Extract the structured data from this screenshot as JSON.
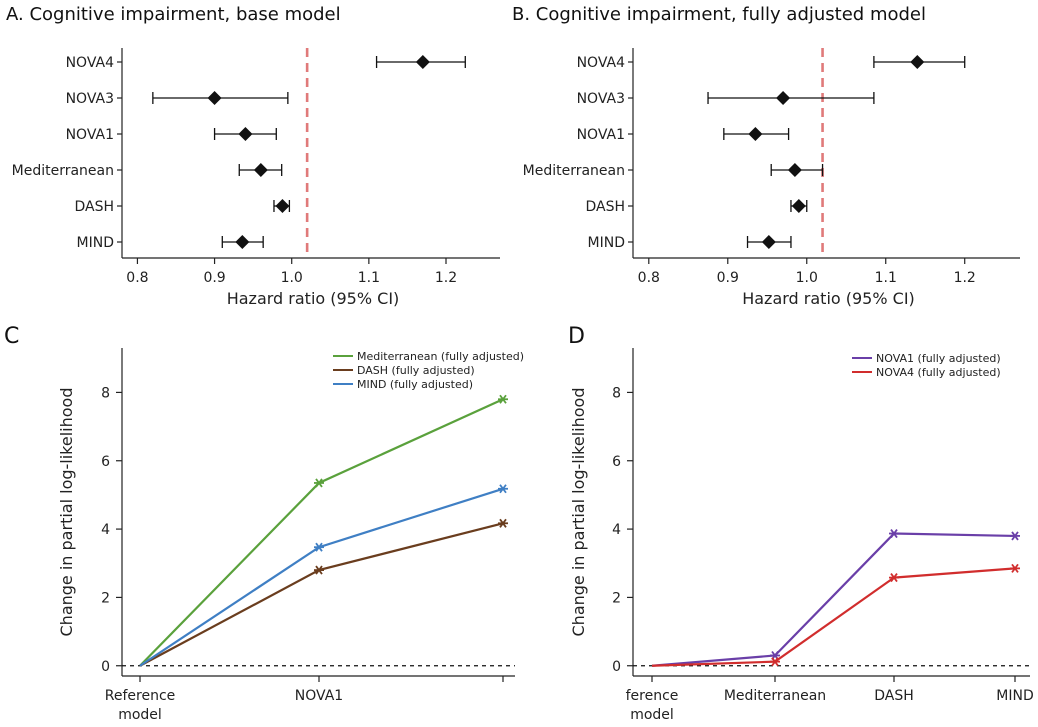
{
  "panels": [
    {
      "type": "forest",
      "title": "A. Cognitive impairment, base model",
      "xlabel": "Hazard ratio (95% CI)",
      "xticks": [
        0.8,
        0.9,
        1.0,
        1.1,
        1.2
      ],
      "xtick_labels": [
        "0.8",
        "0.9",
        "1.0",
        "1.1",
        "1.2"
      ],
      "xlim": [
        0.78,
        1.27
      ],
      "reference_value": 1.02,
      "reference_color": "#e07a7a",
      "rows": [
        {
          "label": "NOVA4",
          "hr": 1.17,
          "lo": 1.11,
          "hi": 1.225
        },
        {
          "label": "NOVA3",
          "hr": 0.9,
          "lo": 0.82,
          "hi": 0.995
        },
        {
          "label": "NOVA1",
          "hr": 0.94,
          "lo": 0.9,
          "hi": 0.98
        },
        {
          "label": "Mediterranean",
          "hr": 0.96,
          "lo": 0.932,
          "hi": 0.987
        },
        {
          "label": "DASH",
          "hr": 0.988,
          "lo": 0.977,
          "hi": 0.997
        },
        {
          "label": "MIND",
          "hr": 0.936,
          "lo": 0.91,
          "hi": 0.963
        }
      ]
    },
    {
      "type": "forest",
      "title": "B. Cognitive impairment, fully adjusted model",
      "xlabel": "Hazard ratio (95% CI)",
      "xticks": [
        0.8,
        0.9,
        1.0,
        1.1,
        1.2
      ],
      "xtick_labels": [
        "0.8",
        "0.9",
        "1.0",
        "1.1",
        "1.2"
      ],
      "xlim": [
        0.78,
        1.27
      ],
      "reference_value": 1.02,
      "reference_color": "#e07a7a",
      "rows": [
        {
          "label": "NOVA4",
          "hr": 1.14,
          "lo": 1.085,
          "hi": 1.2
        },
        {
          "label": "NOVA3",
          "hr": 0.97,
          "lo": 0.875,
          "hi": 1.085
        },
        {
          "label": "NOVA1",
          "hr": 0.935,
          "lo": 0.895,
          "hi": 0.977
        },
        {
          "label": "Mediterranean",
          "hr": 0.985,
          "lo": 0.955,
          "hi": 1.02
        },
        {
          "label": "DASH",
          "hr": 0.99,
          "lo": 0.98,
          "hi": 1.0
        },
        {
          "label": "MIND",
          "hr": 0.952,
          "lo": 0.925,
          "hi": 0.98
        }
      ]
    },
    {
      "type": "line",
      "title": "C",
      "ylabel": "Change in partial log-likelihood",
      "categories": [
        "Reference model",
        "NOVA1",
        ""
      ],
      "category_lines": [
        [
          "Reference",
          "model"
        ],
        [
          "NOVA1"
        ],
        [
          ""
        ]
      ],
      "yticks": [
        0,
        2,
        4,
        6,
        8
      ],
      "ylim": [
        -0.3,
        9.3
      ],
      "baseline": 0,
      "series": [
        {
          "name": "Mediterranean (fully adjusted)",
          "color": "#5aa13c",
          "values": [
            0,
            5.35,
            7.8
          ]
        },
        {
          "name": "DASH (fully adjusted)",
          "color": "#6a3d1e",
          "values": [
            0,
            2.8,
            4.17
          ]
        },
        {
          "name": "MIND (fully adjusted)",
          "color": "#3f7fc4",
          "values": [
            0,
            3.47,
            5.18
          ]
        }
      ]
    },
    {
      "type": "line",
      "title": "D",
      "ylabel": "Change in partial log-likelihood",
      "categories": [
        "ference model",
        "Mediterranean",
        "DASH",
        "MIND"
      ],
      "category_lines": [
        [
          "ference",
          "model"
        ],
        [
          "Mediterranean"
        ],
        [
          "DASH"
        ],
        [
          "MIND"
        ]
      ],
      "yticks": [
        0,
        2,
        4,
        6,
        8
      ],
      "ylim": [
        -0.3,
        9.3
      ],
      "baseline": 0,
      "series": [
        {
          "name": "NOVA1 (fully adjusted)",
          "color": "#6a3fa8",
          "values": [
            0,
            0.3,
            3.87,
            3.8
          ]
        },
        {
          "name": "NOVA4 (fully adjusted)",
          "color": "#d12d2d",
          "values": [
            0,
            0.12,
            2.58,
            2.85
          ]
        }
      ]
    }
  ]
}
